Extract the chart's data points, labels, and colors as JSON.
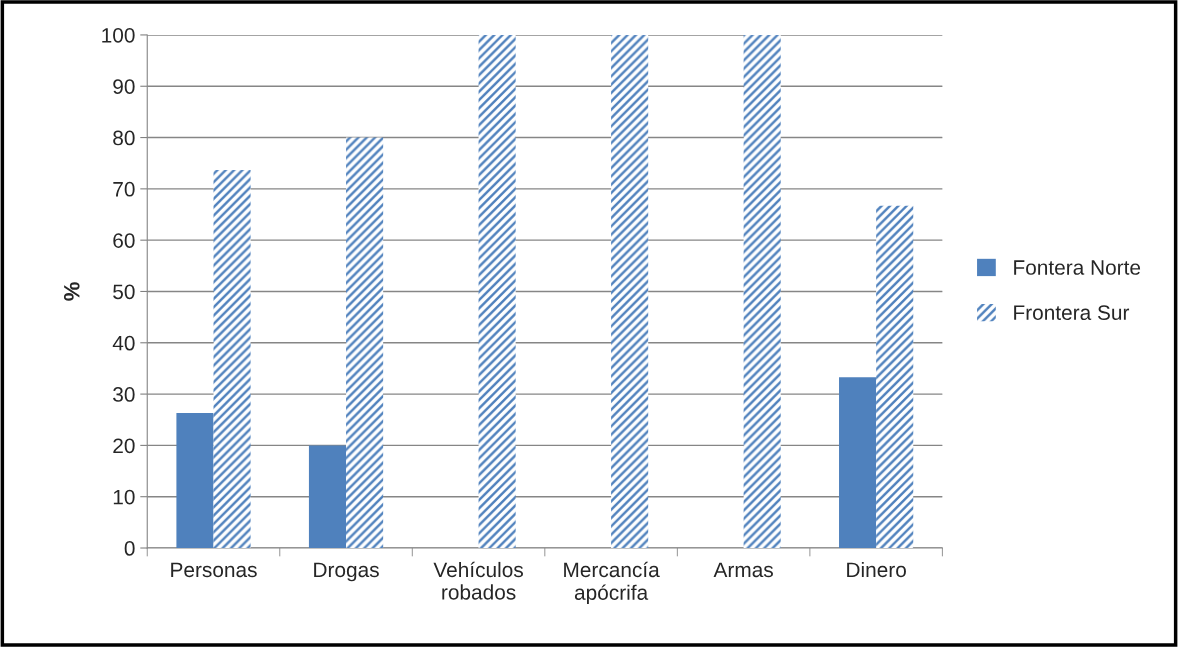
{
  "chart_data": {
    "type": "bar",
    "ylabel": "%",
    "categories": [
      "Personas",
      "Drogas",
      "Vehículos robados",
      "Mercancía apócrifa",
      "Armas",
      "Dinero"
    ],
    "series": [
      {
        "name": "Fontera Norte",
        "color": "#4f81bd",
        "values": [
          26.3,
          20,
          0,
          0,
          0,
          33.3
        ]
      },
      {
        "name": "Frontera Sur",
        "color": "#4f81bd",
        "values": [
          73.7,
          80,
          100,
          100,
          100,
          66.7
        ]
      }
    ],
    "ylim": [
      0,
      100
    ],
    "yticks": [
      0,
      10,
      20,
      30,
      40,
      50,
      60,
      70,
      80,
      90,
      100
    ],
    "grid": "y",
    "legend": "right"
  }
}
